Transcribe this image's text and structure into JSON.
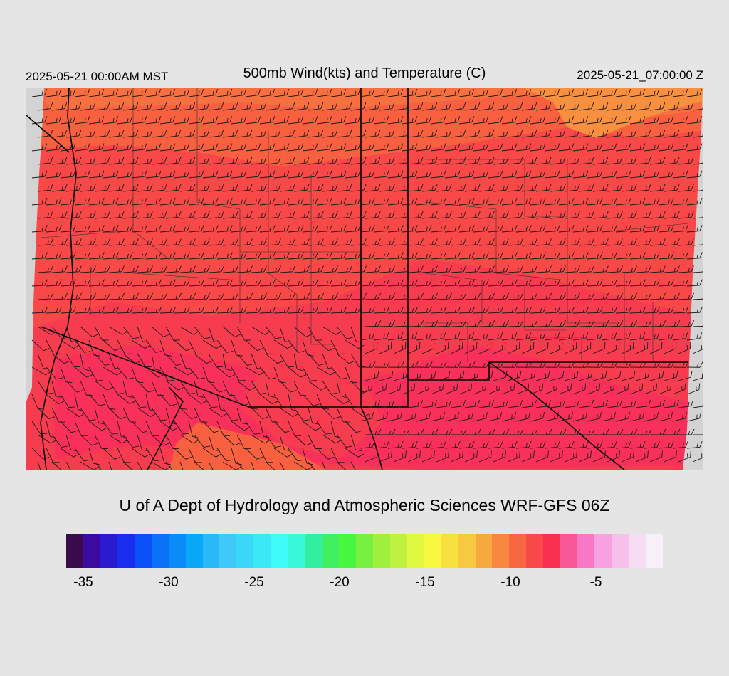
{
  "header": {
    "valid_local": "2025-05-21 00:00AM MST",
    "title": "500mb Wind(kts) and Temperature (C)",
    "valid_utc": "2025-05-21_07:00:00 Z"
  },
  "credit": "U of A Dept of Hydrology and Atmospheric Sciences WRF-GFS 06Z",
  "colorbar": {
    "colors": [
      "#3a0a4a",
      "#3c0aa0",
      "#2a1ad0",
      "#1a2ef0",
      "#0a50f8",
      "#0a72f8",
      "#0a8cf8",
      "#0aa8f8",
      "#2ab8f8",
      "#40c8f8",
      "#3ad8f8",
      "#3ae8f8",
      "#40fcf8",
      "#38f8d8",
      "#30f0a0",
      "#40f060",
      "#48f840",
      "#78f040",
      "#a0f040",
      "#c0f040",
      "#e0f840",
      "#f8f840",
      "#f8e040",
      "#f8c840",
      "#f8a840",
      "#f88840",
      "#f86840",
      "#f84848",
      "#f83050",
      "#f85898",
      "#f878c8",
      "#f8a0e0",
      "#f8c0ec",
      "#f8dcf4",
      "#f8f0f8"
    ],
    "ticks": [
      "-35",
      "-30",
      "-25",
      "-20",
      "-15",
      "-10",
      "-5"
    ]
  },
  "map": {
    "region": "Arizona and New Mexico",
    "field": "500mb temperature",
    "field_colors": {
      "north": "#f87040",
      "north_band": "#f86040",
      "central": "#f84848",
      "south": "#f83c50",
      "core": "#f8305a",
      "warm_pocket": "#f89040",
      "land_background": "#d3d3d3"
    }
  }
}
